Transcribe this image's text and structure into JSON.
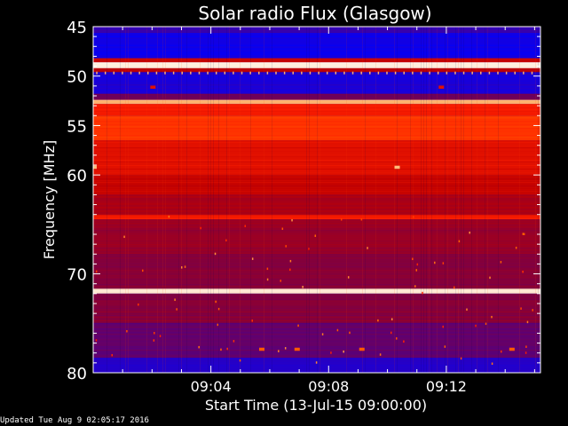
{
  "footer": {
    "updated_text": "Updated Tue Aug  9 02:05:17 2016"
  },
  "chart_data": {
    "type": "heatmap",
    "title": "Solar radio Flux (Glasgow)",
    "xlabel": "Start Time (13-Jul-15 09:00:00)",
    "ylabel": "Frequency [MHz]",
    "x_unit": "minutes after 09:00:00",
    "xlim": [
      0,
      15.2
    ],
    "ylim": [
      80,
      45
    ],
    "x_ticks": [
      {
        "value": 4,
        "label": "09:04"
      },
      {
        "value": 8,
        "label": "09:08"
      },
      {
        "value": 12,
        "label": "09:12"
      }
    ],
    "y_ticks": [
      {
        "value": 45,
        "label": "45"
      },
      {
        "value": 50,
        "label": "50"
      },
      {
        "value": 55,
        "label": "55"
      },
      {
        "value": 60,
        "label": "60"
      },
      {
        "value": 70,
        "label": "70"
      },
      {
        "value": 80,
        "label": "80"
      }
    ],
    "colormap": [
      "#0000ff",
      "#4000a0",
      "#800040",
      "#c00000",
      "#ff2000",
      "#ff6000",
      "#ffc080",
      "#ffffff"
    ],
    "bands": [
      {
        "from_mhz": 45.0,
        "to_mhz": 45.6,
        "level": 0.12
      },
      {
        "from_mhz": 45.6,
        "to_mhz": 48.2,
        "level": 0.03
      },
      {
        "from_mhz": 48.2,
        "to_mhz": 48.6,
        "level": 0.45
      },
      {
        "from_mhz": 48.6,
        "to_mhz": 49.2,
        "level": 0.97
      },
      {
        "from_mhz": 49.2,
        "to_mhz": 49.6,
        "level": 0.4
      },
      {
        "from_mhz": 49.6,
        "to_mhz": 51.8,
        "level": 0.06
      },
      {
        "from_mhz": 51.8,
        "to_mhz": 52.4,
        "level": 0.25
      },
      {
        "from_mhz": 52.4,
        "to_mhz": 52.8,
        "level": 0.85
      },
      {
        "from_mhz": 52.8,
        "to_mhz": 54.0,
        "level": 0.55
      },
      {
        "from_mhz": 54.0,
        "to_mhz": 56.5,
        "level": 0.62
      },
      {
        "from_mhz": 56.5,
        "to_mhz": 60.0,
        "level": 0.5
      },
      {
        "from_mhz": 60.0,
        "to_mhz": 62.0,
        "level": 0.44
      },
      {
        "from_mhz": 62.0,
        "to_mhz": 64.0,
        "level": 0.38
      },
      {
        "from_mhz": 64.0,
        "to_mhz": 64.5,
        "level": 0.55
      },
      {
        "from_mhz": 64.5,
        "to_mhz": 68.0,
        "level": 0.34
      },
      {
        "from_mhz": 68.0,
        "to_mhz": 71.5,
        "level": 0.3
      },
      {
        "from_mhz": 71.5,
        "to_mhz": 72.0,
        "level": 0.95
      },
      {
        "from_mhz": 72.0,
        "to_mhz": 75.0,
        "level": 0.3
      },
      {
        "from_mhz": 75.0,
        "to_mhz": 78.5,
        "level": 0.22
      },
      {
        "from_mhz": 78.5,
        "to_mhz": 80.0,
        "level": 0.08
      }
    ],
    "features": [
      {
        "time_min": 10.3,
        "freq_mhz": 59.2,
        "level": 0.85
      },
      {
        "time_min": 0.0,
        "freq_mhz": 59.2,
        "level": 0.85
      },
      {
        "time_min": 2.0,
        "freq_mhz": 51.1,
        "level": 0.5
      },
      {
        "time_min": 11.8,
        "freq_mhz": 51.1,
        "level": 0.5
      },
      {
        "time_min": 5.7,
        "freq_mhz": 77.6,
        "level": 0.7
      },
      {
        "time_min": 6.9,
        "freq_mhz": 77.6,
        "level": 0.7
      },
      {
        "time_min": 9.1,
        "freq_mhz": 77.6,
        "level": 0.7
      },
      {
        "time_min": 14.2,
        "freq_mhz": 77.6,
        "level": 0.7
      }
    ]
  }
}
